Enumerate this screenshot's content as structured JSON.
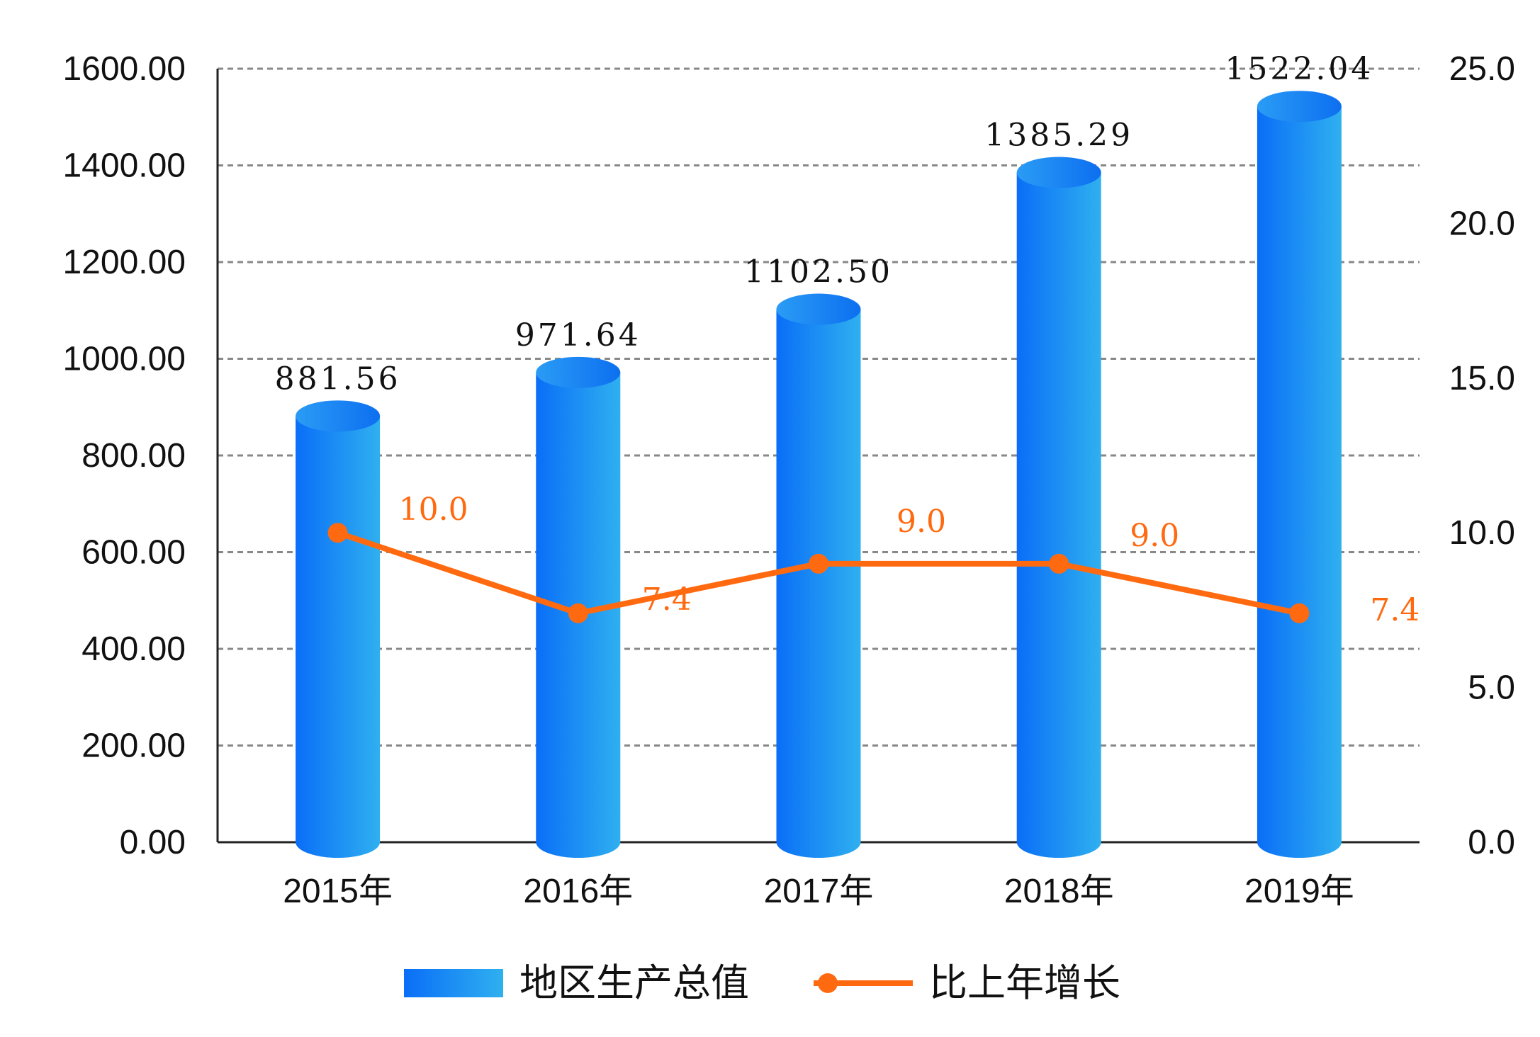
{
  "chart_data": {
    "type": "bar",
    "categories": [
      "2015年",
      "2016年",
      "2017年",
      "2018年",
      "2019年"
    ],
    "series": [
      {
        "name": "地区生产总值",
        "type": "bar",
        "axis": "left",
        "values": [
          881.56,
          971.64,
          1102.5,
          1385.29,
          1522.04
        ],
        "labels": [
          "881.56",
          "971.64",
          "1102.50",
          "1385.29",
          "1522.04"
        ],
        "color": "#1a8cf2"
      },
      {
        "name": "比上年增长",
        "type": "line",
        "axis": "right",
        "values": [
          10.0,
          7.4,
          9.0,
          9.0,
          7.4
        ],
        "labels": [
          "10.0",
          "7.4",
          "9.0",
          "9.0",
          "7.4"
        ],
        "color": "#ff6a10"
      }
    ],
    "y_left": {
      "ylim": [
        0,
        1600
      ],
      "ticks": [
        "0.00",
        "200.00",
        "400.00",
        "600.00",
        "800.00",
        "1000.00",
        "1200.00",
        "1400.00",
        "1600.00"
      ]
    },
    "y_right": {
      "ylim": [
        0,
        25
      ],
      "ticks": [
        "0.0",
        "5.0",
        "10.0",
        "15.0",
        "20.0",
        "25.0"
      ]
    },
    "grid": true,
    "legend": "bottom-center"
  }
}
